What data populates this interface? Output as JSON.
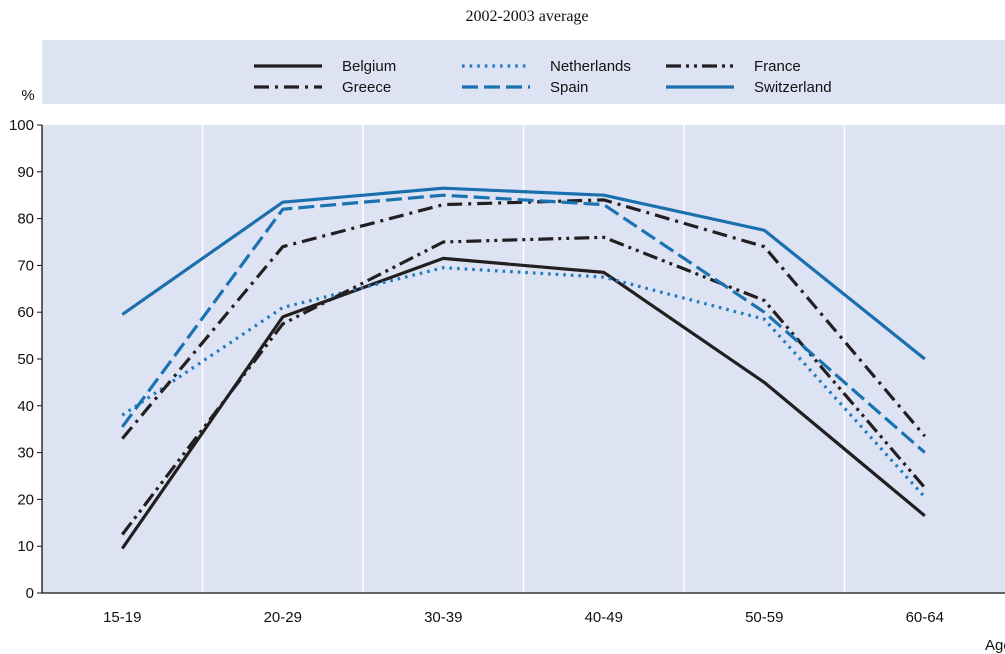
{
  "chart_data": {
    "type": "line",
    "title": "2002-2003 average",
    "ylabel": "%",
    "xlabel": "Age",
    "ylim": [
      0,
      100
    ],
    "yticks": [
      0,
      10,
      20,
      30,
      40,
      50,
      60,
      70,
      80,
      90,
      100
    ],
    "categories": [
      "15-19",
      "20-29",
      "30-39",
      "40-49",
      "50-59",
      "60-64"
    ],
    "grid": "vertical",
    "legend_position": "top",
    "series": [
      {
        "name": "Belgium",
        "color": "#231f20",
        "dash": "solid",
        "values": [
          9.5,
          59,
          71.5,
          68.5,
          45,
          16.5
        ]
      },
      {
        "name": "Netherlands",
        "color": "#1f7bbf",
        "dash": "dotted",
        "values": [
          38,
          61,
          69.5,
          67.5,
          58.5,
          20.5
        ]
      },
      {
        "name": "France",
        "color": "#231f20",
        "dash": "dash-dot-dot",
        "values": [
          12.5,
          57.5,
          75,
          76,
          62.5,
          22.5
        ]
      },
      {
        "name": "Greece",
        "color": "#231f20",
        "dash": "dash-dot",
        "values": [
          33,
          74,
          83,
          84,
          74,
          33.5
        ]
      },
      {
        "name": "Spain",
        "color": "#1a72b0",
        "dash": "dashed",
        "values": [
          35.5,
          82,
          85,
          83,
          60,
          30
        ]
      },
      {
        "name": "Switzerland",
        "color": "#1a6fad",
        "dash": "solid",
        "values": [
          59.5,
          83.5,
          86.5,
          85,
          77.5,
          50
        ]
      }
    ]
  }
}
